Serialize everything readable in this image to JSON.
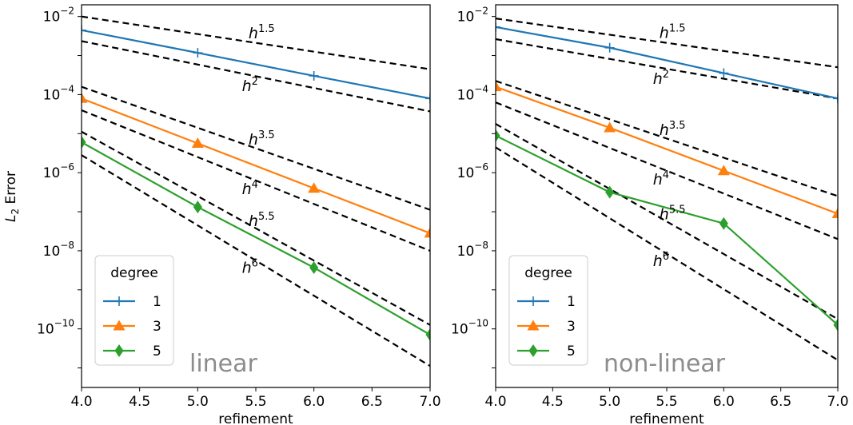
{
  "y_axis_label": "L₂ Error",
  "chart_data": [
    {
      "type": "line",
      "panel_label": "linear",
      "xlabel": "refinement",
      "ylabel": "L₂ Error",
      "xlim": [
        4.0,
        7.0
      ],
      "ylim_log10": [
        -11.5,
        -1.7
      ],
      "yscale": "log",
      "grid": false,
      "x_ticks": [
        "4.0",
        "4.5",
        "5.0",
        "5.5",
        "6.0",
        "6.5",
        "7.0"
      ],
      "y_ticks": [
        {
          "base": "10",
          "exp": "−2",
          "log10": -2
        },
        {
          "base": "10",
          "exp": "−4",
          "log10": -4
        },
        {
          "base": "10",
          "exp": "−6",
          "log10": -6
        },
        {
          "base": "10",
          "exp": "−8",
          "log10": -8
        },
        {
          "base": "10",
          "exp": "−10",
          "log10": -10
        }
      ],
      "legend": {
        "title": "degree",
        "position": "lower-left"
      },
      "series": [
        {
          "name": "1",
          "color": "#1f77b4",
          "marker": "plus",
          "x": [
            4,
            5,
            6,
            7
          ],
          "y_log10": [
            -2.35,
            -2.93,
            -3.52,
            -4.1
          ]
        },
        {
          "name": "3",
          "color": "#ff7f0e",
          "marker": "triangle",
          "x": [
            4,
            5,
            6,
            7
          ],
          "y_log10": [
            -4.1,
            -5.25,
            -6.4,
            -7.55
          ]
        },
        {
          "name": "5",
          "color": "#2ca02c",
          "marker": "diamond",
          "x": [
            4,
            5,
            6,
            7
          ],
          "y_log10": [
            -5.22,
            -6.88,
            -8.43,
            -10.15
          ]
        }
      ],
      "reference_lines": [
        {
          "base": "h",
          "exp": "1.5",
          "y_log10_start": -2.0,
          "y_log10_end": -3.35,
          "label_x": 5.55
        },
        {
          "base": "h",
          "exp": "2",
          "y_log10_start": -2.63,
          "y_log10_end": -4.43,
          "label_x": 5.45
        },
        {
          "base": "h",
          "exp": "3.5",
          "y_log10_start": -3.8,
          "y_log10_end": -6.95,
          "label_x": 5.55
        },
        {
          "base": "h",
          "exp": "4",
          "y_log10_start": -4.4,
          "y_log10_end": -8.0,
          "label_x": 5.45
        },
        {
          "base": "h",
          "exp": "5.5",
          "y_log10_start": -4.95,
          "y_log10_end": -9.9,
          "label_x": 5.55
        },
        {
          "base": "h",
          "exp": "6",
          "y_log10_start": -5.55,
          "y_log10_end": -10.95,
          "label_x": 5.45
        }
      ]
    },
    {
      "type": "line",
      "panel_label": "non-linear",
      "xlabel": "refinement",
      "ylabel": "",
      "xlim": [
        4.0,
        7.0
      ],
      "ylim_log10": [
        -11.5,
        -1.7
      ],
      "yscale": "log",
      "grid": false,
      "x_ticks": [
        "4.0",
        "4.5",
        "5.0",
        "5.5",
        "6.0",
        "6.5",
        "7.0"
      ],
      "y_ticks": [
        {
          "base": "10",
          "exp": "−2",
          "log10": -2
        },
        {
          "base": "10",
          "exp": "−4",
          "log10": -4
        },
        {
          "base": "10",
          "exp": "−6",
          "log10": -6
        },
        {
          "base": "10",
          "exp": "−8",
          "log10": -8
        },
        {
          "base": "10",
          "exp": "−10",
          "log10": -10
        }
      ],
      "legend": {
        "title": "degree",
        "position": "lower-left"
      },
      "series": [
        {
          "name": "1",
          "color": "#1f77b4",
          "marker": "plus",
          "x": [
            4,
            5,
            6,
            7
          ],
          "y_log10": [
            -2.27,
            -2.8,
            -3.45,
            -4.1
          ]
        },
        {
          "name": "3",
          "color": "#ff7f0e",
          "marker": "triangle",
          "x": [
            4,
            5,
            6,
            7
          ],
          "y_log10": [
            -3.8,
            -4.85,
            -5.95,
            -7.05
          ]
        },
        {
          "name": "5",
          "color": "#2ca02c",
          "marker": "diamond",
          "x": [
            4,
            5,
            6,
            7
          ],
          "y_log10": [
            -5.05,
            -6.5,
            -7.3,
            -9.9
          ]
        }
      ],
      "reference_lines": [
        {
          "base": "h",
          "exp": "1.5",
          "y_log10_start": -2.05,
          "y_log10_end": -3.3,
          "label_x": 5.55
        },
        {
          "base": "h",
          "exp": "2",
          "y_log10_start": -2.58,
          "y_log10_end": -4.1,
          "label_x": 5.45
        },
        {
          "base": "h",
          "exp": "3.5",
          "y_log10_start": -3.65,
          "y_log10_end": -6.6,
          "label_x": 5.55
        },
        {
          "base": "h",
          "exp": "4",
          "y_log10_start": -4.2,
          "y_log10_end": -7.7,
          "label_x": 5.45
        },
        {
          "base": "h",
          "exp": "5.5",
          "y_log10_start": -4.75,
          "y_log10_end": -9.75,
          "label_x": 5.55
        },
        {
          "base": "h",
          "exp": "6",
          "y_log10_start": -5.35,
          "y_log10_end": -10.8,
          "label_x": 5.45
        }
      ]
    }
  ]
}
